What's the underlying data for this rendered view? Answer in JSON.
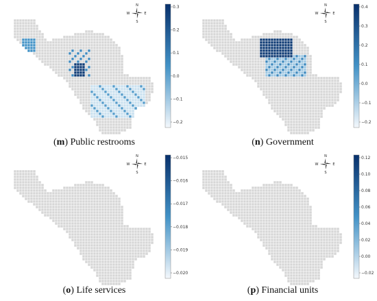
{
  "panels": [
    {
      "id": "m",
      "letter": "m",
      "title": "Public restrooms",
      "colorbar": {
        "ticks": [
          "0.3",
          "0.2",
          "0.1",
          "0.0",
          "−0.1",
          "−0.2"
        ]
      }
    },
    {
      "id": "n",
      "letter": "n",
      "title": "Government",
      "colorbar": {
        "ticks": [
          "0.4",
          "0.3",
          "0.2",
          "0.1",
          "0.0",
          "−0.1",
          "−0.2"
        ]
      }
    },
    {
      "id": "o",
      "letter": "o",
      "title": "Life services",
      "colorbar": {
        "ticks": [
          "−0.015",
          "−0.016",
          "−0.017",
          "−0.018",
          "−0.019",
          "−0.020"
        ]
      }
    },
    {
      "id": "p",
      "letter": "p",
      "title": "Financial units",
      "colorbar": {
        "ticks": [
          "0.12",
          "0.10",
          "0.08",
          "0.06",
          "0.04",
          "0.02",
          "0.00",
          "−0.02"
        ]
      }
    }
  ],
  "compass": {
    "n": "N",
    "s": "S",
    "e": "E",
    "w": "W"
  },
  "colors": {
    "grid_fill": "#d6d6d6",
    "grid_line": "#ffffff",
    "scale_low": "#f4f8fc",
    "scale_high": "#08306b",
    "caption": "#111111"
  }
}
